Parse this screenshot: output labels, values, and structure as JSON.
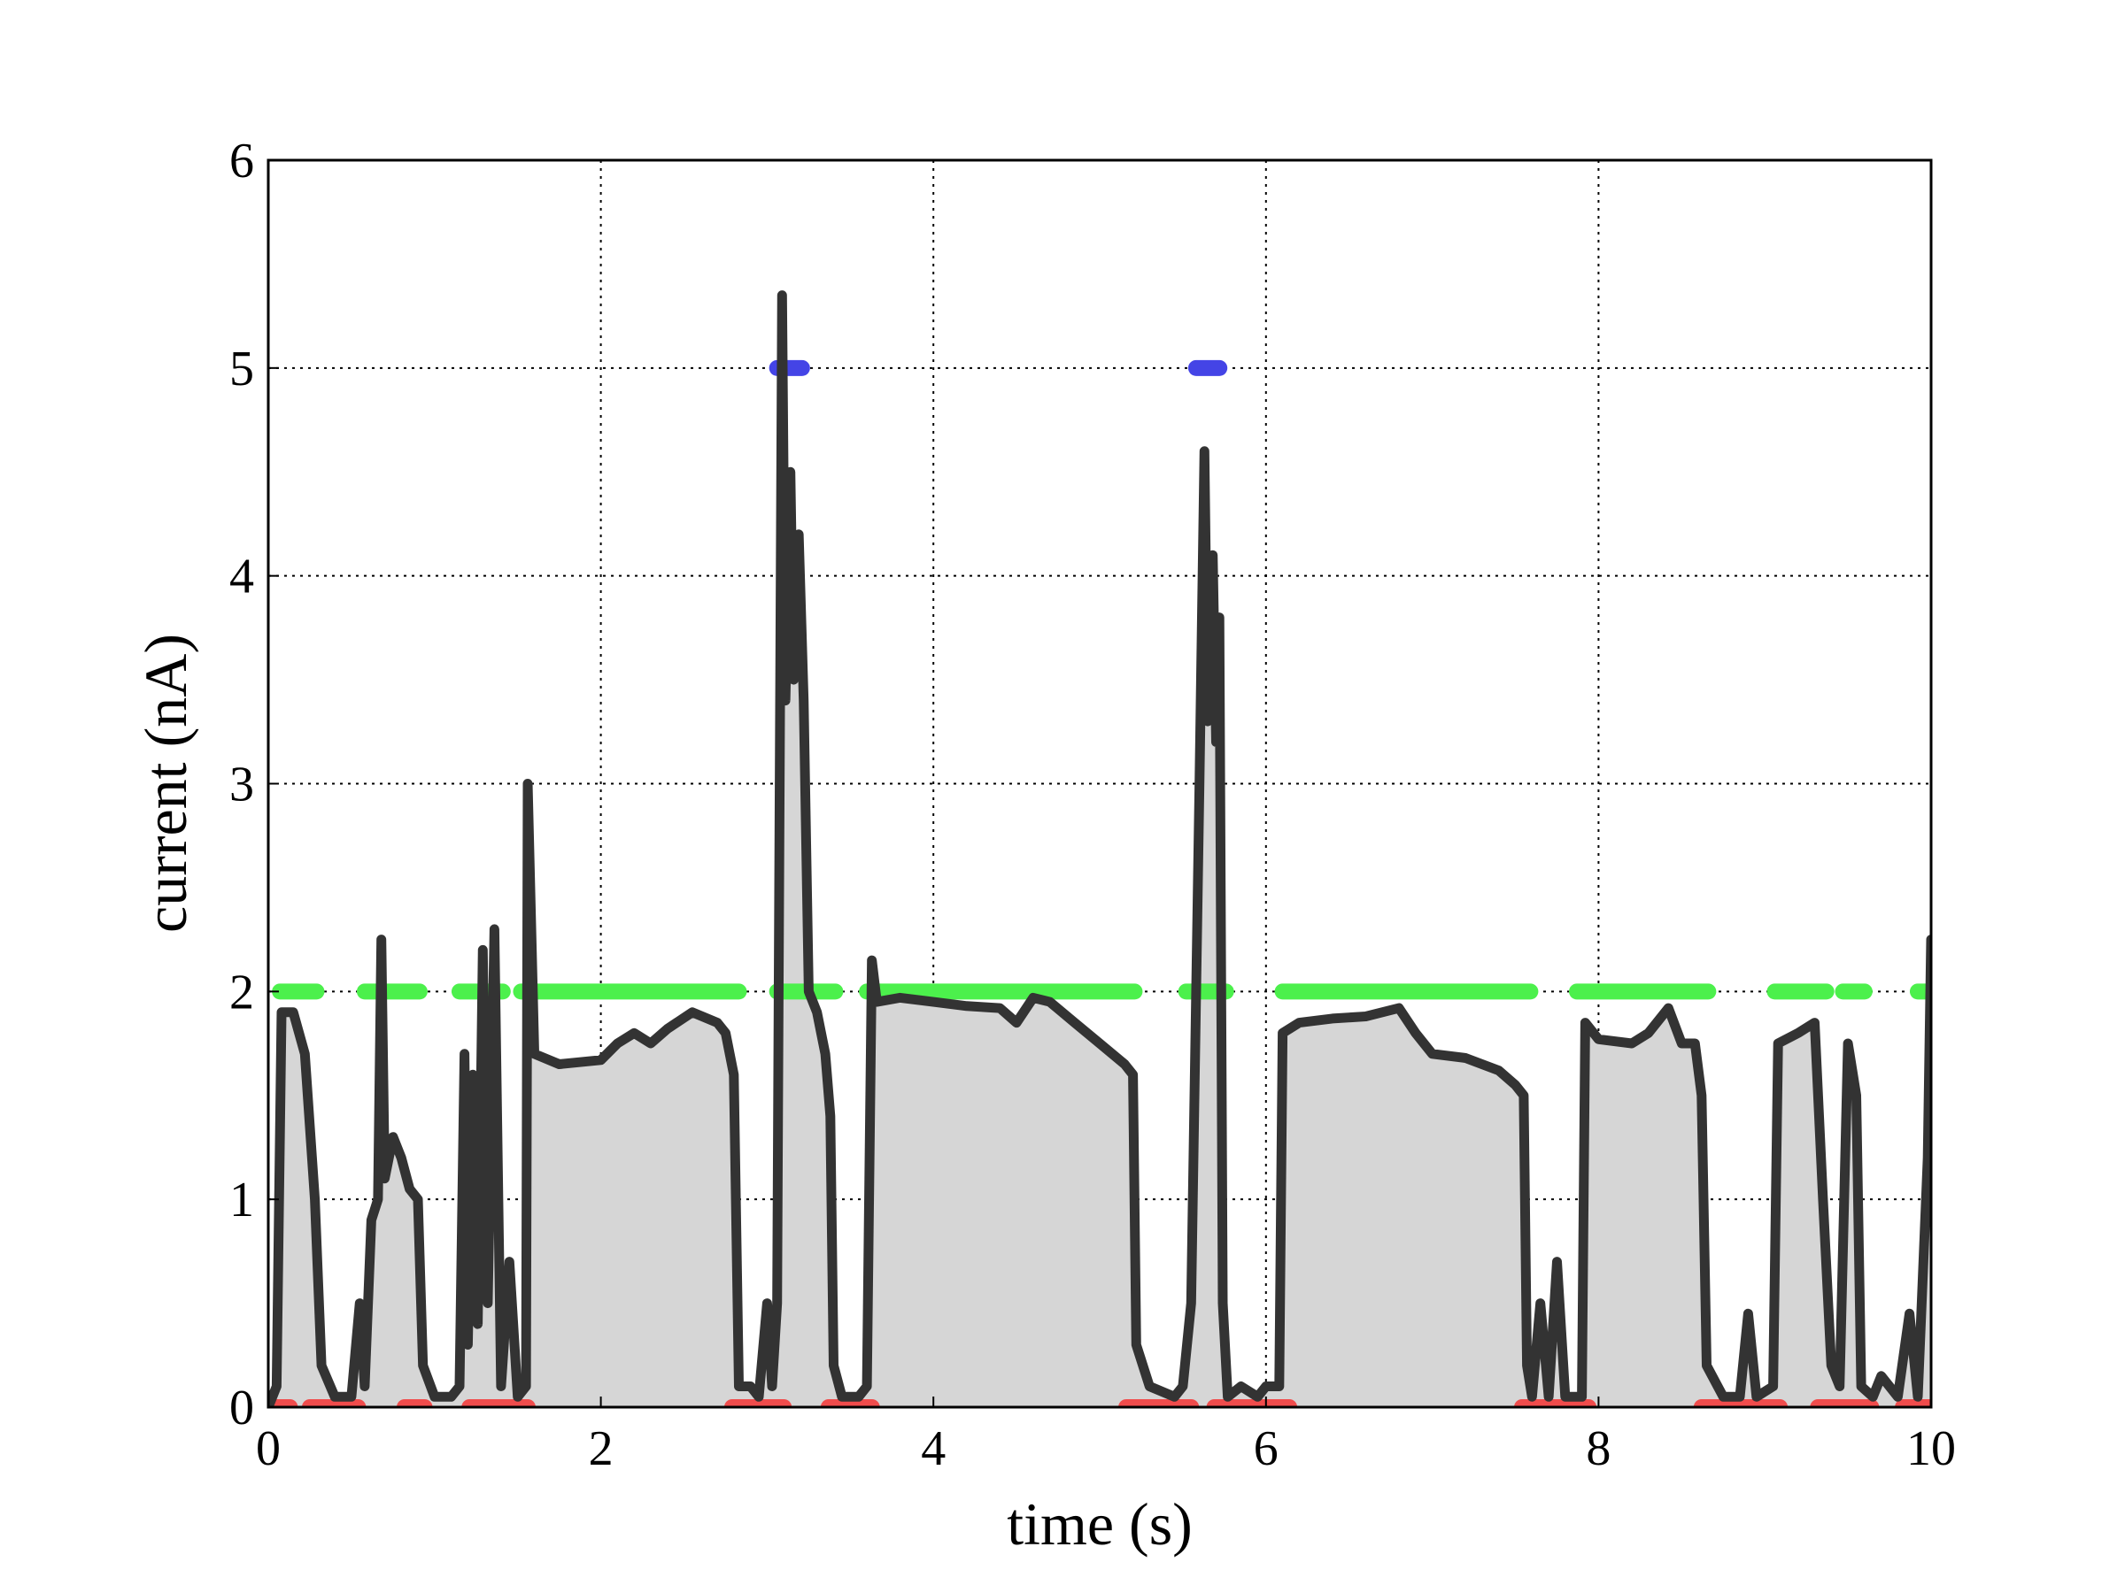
{
  "chart_data": {
    "type": "line",
    "x_label": "time (s)",
    "y_label": "current (nA)",
    "xlim": [
      0,
      10
    ],
    "ylim": [
      0,
      6
    ],
    "xticks": [
      0,
      2,
      4,
      6,
      8,
      10
    ],
    "yticks": [
      0,
      1,
      2,
      3,
      4,
      5,
      6
    ],
    "grid": true,
    "x": [
      0,
      0.05,
      0.08,
      0.15,
      0.22,
      0.28,
      0.32,
      0.4,
      0.5,
      0.55,
      0.58,
      0.62,
      0.66,
      0.68,
      0.7,
      0.75,
      0.8,
      0.85,
      0.9,
      0.93,
      1.0,
      1.1,
      1.15,
      1.18,
      1.2,
      1.23,
      1.26,
      1.29,
      1.32,
      1.36,
      1.4,
      1.45,
      1.5,
      1.55,
      1.56,
      1.6,
      1.75,
      2.0,
      2.1,
      2.2,
      2.3,
      2.4,
      2.55,
      2.7,
      2.75,
      2.8,
      2.83,
      2.9,
      2.95,
      3.0,
      3.03,
      3.06,
      3.09,
      3.11,
      3.14,
      3.16,
      3.19,
      3.22,
      3.25,
      3.3,
      3.35,
      3.38,
      3.4,
      3.45,
      3.55,
      3.6,
      3.63,
      3.66,
      3.8,
      4.0,
      4.2,
      4.4,
      4.5,
      4.6,
      4.7,
      4.85,
      5.0,
      5.15,
      5.2,
      5.22,
      5.3,
      5.45,
      5.5,
      5.55,
      5.6,
      5.63,
      5.65,
      5.68,
      5.7,
      5.72,
      5.74,
      5.77,
      5.85,
      5.95,
      6.0,
      6.08,
      6.1,
      6.2,
      6.4,
      6.6,
      6.8,
      6.9,
      7.0,
      7.2,
      7.4,
      7.5,
      7.55,
      7.57,
      7.6,
      7.65,
      7.7,
      7.75,
      7.8,
      7.9,
      7.92,
      8.0,
      8.2,
      8.3,
      8.42,
      8.5,
      8.58,
      8.62,
      8.65,
      8.75,
      8.85,
      8.9,
      8.95,
      9.05,
      9.08,
      9.2,
      9.3,
      9.35,
      9.4,
      9.45,
      9.5,
      9.55,
      9.58,
      9.65,
      9.7,
      9.8,
      9.87,
      9.92,
      9.98,
      10.0
    ],
    "series": [
      {
        "color": "#333333",
        "fill": "#d6d6d6",
        "values": [
          0,
          0.1,
          1.9,
          1.9,
          1.7,
          1.0,
          0.2,
          0.05,
          0.05,
          0.5,
          0.1,
          0.9,
          1.0,
          2.25,
          1.1,
          1.3,
          1.2,
          1.05,
          1.0,
          0.2,
          0.05,
          0.05,
          0.1,
          1.7,
          0.3,
          1.6,
          0.4,
          2.2,
          0.5,
          2.3,
          0.1,
          0.7,
          0.05,
          0.1,
          3.0,
          1.7,
          1.65,
          1.67,
          1.75,
          1.8,
          1.75,
          1.82,
          1.9,
          1.85,
          1.8,
          1.6,
          0.1,
          0.1,
          0.05,
          0.5,
          0.1,
          0.5,
          5.35,
          3.4,
          4.5,
          3.5,
          4.2,
          3.4,
          2.0,
          1.9,
          1.7,
          1.4,
          0.2,
          0.05,
          0.05,
          0.1,
          2.15,
          1.95,
          1.97,
          1.95,
          1.93,
          1.92,
          1.85,
          1.97,
          1.95,
          1.85,
          1.75,
          1.65,
          1.6,
          0.3,
          0.1,
          0.05,
          0.1,
          0.5,
          3.0,
          4.6,
          3.3,
          4.1,
          3.2,
          3.8,
          0.5,
          0.05,
          0.1,
          0.05,
          0.1,
          0.1,
          1.8,
          1.85,
          1.87,
          1.88,
          1.92,
          1.8,
          1.7,
          1.68,
          1.62,
          1.55,
          1.5,
          0.2,
          0.05,
          0.5,
          0.05,
          0.7,
          0.05,
          0.05,
          1.85,
          1.77,
          1.75,
          1.8,
          1.92,
          1.75,
          1.75,
          1.5,
          0.2,
          0.05,
          0.05,
          0.45,
          0.05,
          0.1,
          1.75,
          1.8,
          1.85,
          1.0,
          0.2,
          0.1,
          1.75,
          1.5,
          0.1,
          0.05,
          0.15,
          0.05,
          0.45,
          0.05,
          1.2,
          2.25
        ]
      }
    ],
    "bands": [
      {
        "color": "#4cf04c",
        "y": 2,
        "ranges": [
          [
            0.07,
            0.29
          ],
          [
            0.58,
            0.91
          ],
          [
            1.15,
            1.41
          ],
          [
            1.52,
            2.83
          ],
          [
            3.06,
            3.41
          ],
          [
            3.6,
            5.21
          ],
          [
            5.52,
            5.76
          ],
          [
            6.1,
            7.59
          ],
          [
            7.87,
            8.66
          ],
          [
            9.06,
            9.37
          ],
          [
            9.47,
            9.6
          ],
          [
            9.92,
            10
          ]
        ]
      },
      {
        "color": "#4444e6",
        "y": 5,
        "ranges": [
          [
            3.06,
            3.21
          ],
          [
            5.58,
            5.72
          ]
        ]
      },
      {
        "color": "#f04c4c",
        "y": 0,
        "ranges": [
          [
            0,
            0.13
          ],
          [
            0.25,
            0.54
          ],
          [
            0.82,
            0.94
          ],
          [
            1.21,
            1.56
          ],
          [
            2.79,
            3.1
          ],
          [
            3.37,
            3.63
          ],
          [
            5.16,
            5.55
          ],
          [
            5.69,
            6.14
          ],
          [
            7.54,
            7.94
          ],
          [
            8.62,
            9.09
          ],
          [
            9.32,
            9.64
          ],
          [
            9.83,
            10
          ]
        ]
      }
    ]
  }
}
